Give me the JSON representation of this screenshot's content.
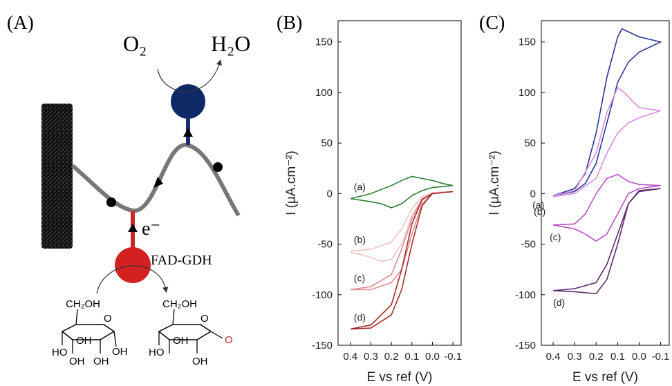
{
  "diagram": {
    "label": "(A)",
    "oxygen": "O₂",
    "water": "H₂O",
    "electron": "e⁻",
    "enzyme": "FAD-GDH",
    "glucose": [
      "CH₂OH",
      "O",
      "OH",
      "OH",
      "OH",
      "HO",
      "OH"
    ],
    "lactone": [
      "CH₂OH",
      "O",
      "OH",
      "HO",
      "OH",
      "O"
    ]
  },
  "chart_data": [
    {
      "type": "line",
      "label": "(B)",
      "x_label": "E vs ref (V)",
      "y_label": "I (µA.cm⁻²)",
      "xlim": [
        0.46,
        -0.14
      ],
      "ylim": [
        -150,
        171
      ],
      "xticks": [
        0.4,
        0.3,
        0.2,
        0.1,
        {
          "value": 0,
          "label": "0.0"
        },
        -0.1
      ],
      "yticks": [
        -150,
        -100,
        -50,
        0,
        50,
        100,
        150
      ],
      "series": [
        {
          "name": "(a)",
          "color": "#2e7d32",
          "x": [
            0.4,
            0.3,
            0.25,
            0.2,
            0.15,
            0.1,
            0.05,
            0,
            -0.1,
            -0.05,
            0,
            0.05,
            0.1,
            0.15,
            0.2,
            0.3,
            0.4
          ],
          "values": [
            -5,
            -8,
            -10,
            -14,
            -10,
            -2,
            3,
            6,
            8,
            10,
            13,
            15,
            17,
            13,
            8,
            0,
            -5
          ]
        },
        {
          "name": "(b)",
          "color": "#f0c4c4",
          "x": [
            0.4,
            0.3,
            0.2,
            0.15,
            0.1,
            0.05,
            0,
            -0.1,
            0,
            0.05,
            0.1,
            0.15,
            0.2,
            0.25,
            0.3,
            0.4
          ],
          "values": [
            -57,
            -55,
            -48,
            -35,
            -15,
            -3,
            1,
            2,
            0,
            -5,
            -22,
            -50,
            -65,
            -67,
            -63,
            -58
          ]
        },
        {
          "name": "(c)",
          "color": "#e08a8a",
          "x": [
            0.4,
            0.3,
            0.2,
            0.15,
            0.1,
            0.05,
            0,
            -0.1,
            0,
            0.05,
            0.1,
            0.15,
            0.2,
            0.3,
            0.4
          ],
          "values": [
            -95,
            -92,
            -80,
            -55,
            -25,
            -5,
            0,
            2,
            0,
            -10,
            -40,
            -75,
            -88,
            -95,
            -95
          ]
        },
        {
          "name": "(d)",
          "color": "#a52a2a",
          "x": [
            0.4,
            0.3,
            0.2,
            0.15,
            0.1,
            0.05,
            0,
            -0.1,
            0,
            0.05,
            0.1,
            0.15,
            0.2,
            0.3,
            0.4
          ],
          "values": [
            -134,
            -130,
            -110,
            -75,
            -30,
            -6,
            0,
            2,
            0,
            -12,
            -50,
            -95,
            -120,
            -133,
            -134
          ]
        }
      ]
    },
    {
      "type": "line",
      "label": "(C)",
      "x_label": "E vs ref (V)",
      "y_label": "I (µA.cm⁻²)",
      "xlim": [
        0.455,
        -0.14
      ],
      "ylim": [
        -150,
        171
      ],
      "xticks": [
        0.4,
        0.3,
        0.2,
        0.1,
        {
          "value": 0,
          "label": "0.0"
        },
        -0.1
      ],
      "yticks": [
        -150,
        -100,
        -50,
        0,
        50,
        100,
        150
      ],
      "series": [
        {
          "name": "(a)",
          "color": "#283593",
          "x": [
            0.4,
            0.3,
            0.25,
            0.2,
            0.15,
            0.1,
            0.08,
            0.05,
            0,
            -0.1,
            -0.05,
            0,
            0.05,
            0.1,
            0.15,
            0.2,
            0.25,
            0.3,
            0.4
          ],
          "values": [
            -2,
            5,
            20,
            60,
            115,
            155,
            163,
            160,
            155,
            150,
            145,
            140,
            130,
            110,
            70,
            30,
            10,
            2,
            -2
          ]
        },
        {
          "name": "(b)",
          "color": "#d98be0",
          "x": [
            0.4,
            0.3,
            0.2,
            0.15,
            0.1,
            0.07,
            0,
            -0.1,
            0,
            0.05,
            0.1,
            0.15,
            0.2,
            0.3,
            0.4
          ],
          "values": [
            -2,
            3,
            40,
            80,
            105,
            100,
            85,
            82,
            75,
            70,
            60,
            40,
            15,
            0,
            -3
          ]
        },
        {
          "name": "(c)",
          "color": "#b84fc4",
          "x": [
            0.4,
            0.3,
            0.25,
            0.2,
            0.15,
            0.1,
            0.05,
            0,
            -0.1,
            0,
            0.05,
            0.1,
            0.15,
            0.2,
            0.25,
            0.3,
            0.4
          ],
          "values": [
            -31,
            -30,
            -20,
            0,
            15,
            19,
            12,
            9,
            8,
            5,
            0,
            -20,
            -40,
            -47,
            -40,
            -35,
            -31
          ]
        },
        {
          "name": "(d)",
          "color": "#5b2a6e",
          "x": [
            0.4,
            0.3,
            0.25,
            0.2,
            0.15,
            0.1,
            0.05,
            0,
            -0.1,
            0,
            0.05,
            0.1,
            0.15,
            0.2,
            0.3,
            0.4
          ],
          "values": [
            -96,
            -97,
            -98,
            -99,
            -85,
            -50,
            -10,
            3,
            5,
            2,
            -10,
            -40,
            -70,
            -88,
            -94,
            -96
          ]
        }
      ]
    }
  ]
}
